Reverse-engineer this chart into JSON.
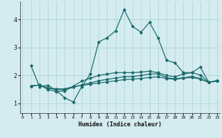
{
  "xlabel": "Humidex (Indice chaleur)",
  "bg_color": "#d4ecf0",
  "line_color": "#1a6b6b",
  "xlim": [
    -0.3,
    23.3
  ],
  "ylim": [
    0.65,
    4.65
  ],
  "xticks": [
    0,
    1,
    2,
    3,
    4,
    5,
    6,
    7,
    8,
    9,
    10,
    11,
    12,
    13,
    14,
    15,
    16,
    17,
    18,
    19,
    20,
    21,
    22,
    23
  ],
  "yticks": [
    1,
    2,
    3,
    4
  ],
  "series1_x": [
    1,
    2,
    3,
    4,
    5,
    6,
    7,
    8,
    9,
    10,
    11,
    12,
    13,
    14,
    15,
    16,
    17,
    18,
    19,
    20,
    21,
    22,
    23
  ],
  "series1_y": [
    2.35,
    1.6,
    1.65,
    1.45,
    1.2,
    1.05,
    1.6,
    2.05,
    3.2,
    3.35,
    3.6,
    4.35,
    3.75,
    3.55,
    3.9,
    3.35,
    2.55,
    2.45,
    2.1,
    2.1,
    2.3,
    1.75,
    1.8
  ],
  "series2_x": [
    1,
    2,
    3,
    4,
    5,
    6,
    7,
    8,
    9,
    10,
    11,
    12,
    13,
    14,
    15,
    16,
    17,
    18,
    19,
    20,
    21,
    22,
    23
  ],
  "series2_y": [
    1.62,
    1.66,
    1.5,
    1.42,
    1.45,
    1.62,
    1.8,
    1.9,
    2.0,
    2.05,
    2.1,
    2.1,
    2.1,
    2.12,
    2.15,
    2.1,
    2.0,
    1.95,
    2.05,
    2.1,
    2.02,
    1.75,
    1.82
  ],
  "series3_x": [
    1,
    2,
    3,
    4,
    5,
    6,
    7,
    8,
    9,
    10,
    11,
    12,
    13,
    14,
    15,
    16,
    17,
    18,
    19,
    20,
    21,
    22,
    23
  ],
  "series3_y": [
    1.62,
    1.66,
    1.54,
    1.5,
    1.48,
    1.58,
    1.66,
    1.73,
    1.81,
    1.86,
    1.91,
    1.95,
    1.96,
    2.0,
    2.05,
    2.06,
    1.92,
    1.88,
    1.92,
    1.96,
    1.89,
    1.75,
    1.82
  ],
  "series4_x": [
    1,
    2,
    3,
    4,
    5,
    6,
    7,
    8,
    9,
    10,
    11,
    12,
    13,
    14,
    15,
    16,
    17,
    18,
    19,
    20,
    21,
    22,
    23
  ],
  "series4_y": [
    1.62,
    1.66,
    1.55,
    1.52,
    1.52,
    1.6,
    1.64,
    1.69,
    1.73,
    1.77,
    1.81,
    1.85,
    1.87,
    1.89,
    1.93,
    1.95,
    1.89,
    1.86,
    1.9,
    1.93,
    1.87,
    1.75,
    1.82
  ]
}
